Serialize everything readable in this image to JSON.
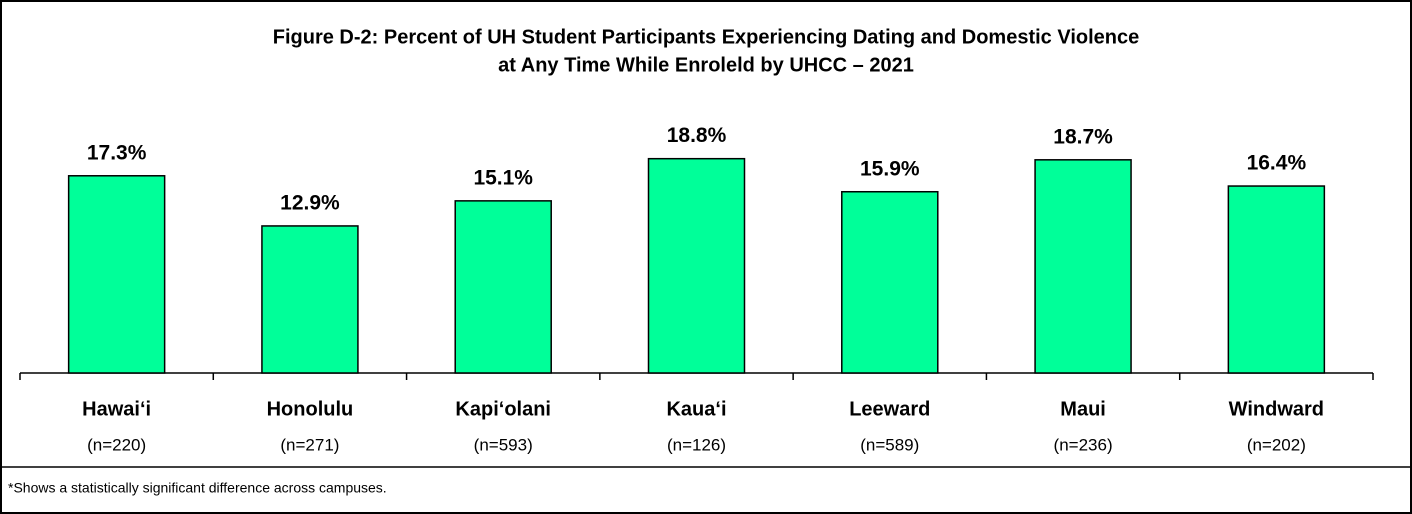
{
  "chart_data": {
    "type": "bar",
    "title": [
      "Figure D-2:  Percent of UH Student Participants Experiencing Dating and Domestic Violence",
      "at Any Time While Enroleld by UHCC – 2021"
    ],
    "categories": [
      "Hawai‘i",
      "Honolulu",
      "Kapi‘olani",
      "Kaua‘i",
      "Leeward",
      "Maui",
      "Windward"
    ],
    "sample_sizes": [
      "(n=220)",
      "(n=271)",
      "(n=593)",
      "(n=126)",
      "(n=589)",
      "(n=236)",
      "(n=202)"
    ],
    "values": [
      17.3,
      12.9,
      15.1,
      18.8,
      15.9,
      18.7,
      16.4
    ],
    "value_labels": [
      "17.3%",
      "12.9%",
      "15.1%",
      "18.8%",
      "15.9%",
      "18.7%",
      "16.4%"
    ],
    "color": "#00ff99",
    "footnote": "*Shows a statistically significant difference across campuses."
  }
}
